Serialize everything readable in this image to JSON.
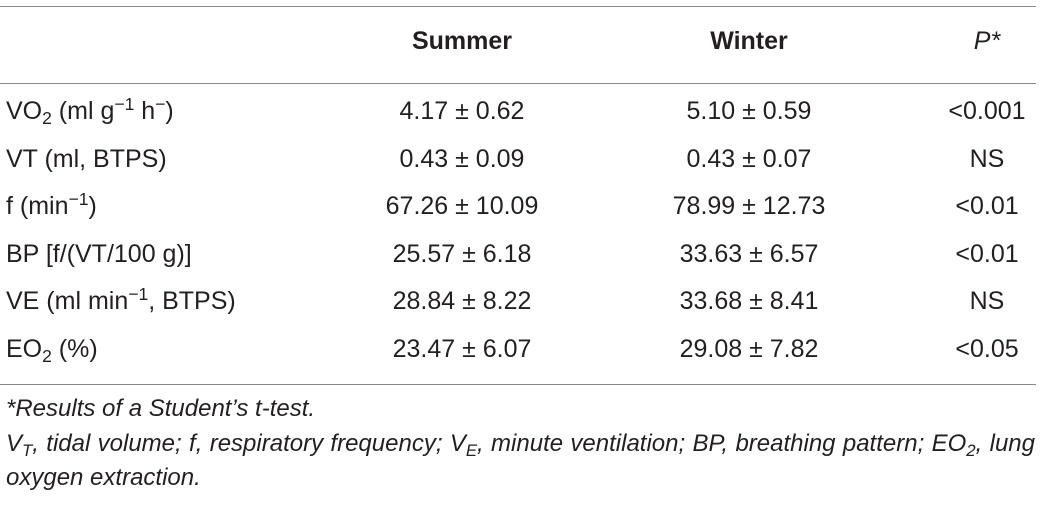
{
  "table": {
    "headers": {
      "col1": "",
      "col2": "Summer",
      "col3": "Winter",
      "col4": "P*"
    },
    "rows": [
      {
        "label": "VO2 (ml g−1 h−)",
        "summer": "4.17 ± 0.62",
        "winter": "5.10 ± 0.59",
        "p": "<0.001"
      },
      {
        "label": "VT (ml, BTPS)",
        "summer": "0.43 ± 0.09",
        "winter": "0.43 ± 0.07",
        "p": "NS"
      },
      {
        "label": "f (min−1)",
        "summer": "67.26 ± 10.09",
        "winter": "78.99 ± 12.73",
        "p": "<0.01"
      },
      {
        "label": "BP [f/(VT/100 g)]",
        "summer": "25.57 ± 6.18",
        "winter": "33.63 ± 6.57",
        "p": "<0.01"
      },
      {
        "label": "VE (ml min−1, BTPS)",
        "summer": "28.84 ± 8.22",
        "winter": "33.68 ± 8.41",
        "p": "NS"
      },
      {
        "label": "EO2 (%)",
        "summer": "23.47 ± 6.07",
        "winter": "29.08 ± 7.82",
        "p": "<0.05"
      }
    ],
    "label_parts": {
      "r0": {
        "a": "VO",
        "sub": "2",
        "b": " (ml g",
        "sup1": "−1",
        "c": " h",
        "sup2": "−",
        "d": ")"
      },
      "r1": {
        "a": "VT (ml, BTPS)"
      },
      "r2": {
        "a": "f (min",
        "sup": "−1",
        "b": ")"
      },
      "r3": {
        "a": "BP [f/(VT/100 g)]"
      },
      "r4": {
        "a": "VE (ml min",
        "sup": "−1",
        "b": ", BTPS)"
      },
      "r5": {
        "a": "EO",
        "sub": "2",
        "b": " (%)"
      }
    }
  },
  "footnotes": {
    "note1": "*Results of a Student’s t-test.",
    "note2": {
      "p1": "V",
      "p1_sub": "T",
      "p2": ", tidal volume; f, respiratory frequency; V",
      "p2_sub": "E",
      "p3": ", minute ventilation; BP, breathing pattern; EO",
      "p3_sub": "2",
      "p4": ", lung oxygen extraction."
    }
  }
}
